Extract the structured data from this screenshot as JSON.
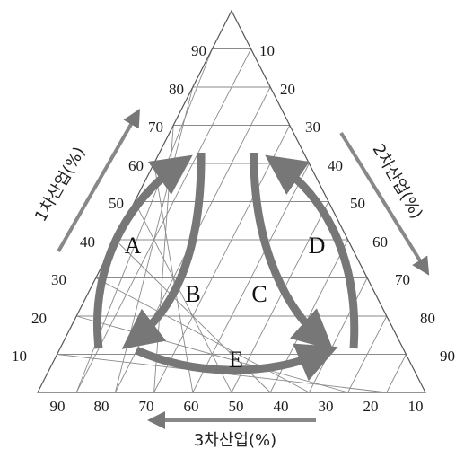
{
  "axes": {
    "primary": {
      "title": "1차산업(%)",
      "ticks": [
        "10",
        "20",
        "30",
        "40",
        "50",
        "60",
        "70",
        "80",
        "90"
      ]
    },
    "secondary": {
      "title": "2차산업(%)",
      "ticks": [
        "10",
        "20",
        "30",
        "40",
        "50",
        "60",
        "70",
        "80",
        "90"
      ]
    },
    "tertiary": {
      "title": "3차산업(%)",
      "ticks": [
        "90",
        "80",
        "70",
        "60",
        "50",
        "40",
        "30",
        "20",
        "10"
      ]
    }
  },
  "regions": [
    "A",
    "B",
    "C",
    "D",
    "E"
  ],
  "colors": {
    "grid": "#8a8a8a",
    "arrow": "#777777",
    "text": "#1a1a1a"
  }
}
